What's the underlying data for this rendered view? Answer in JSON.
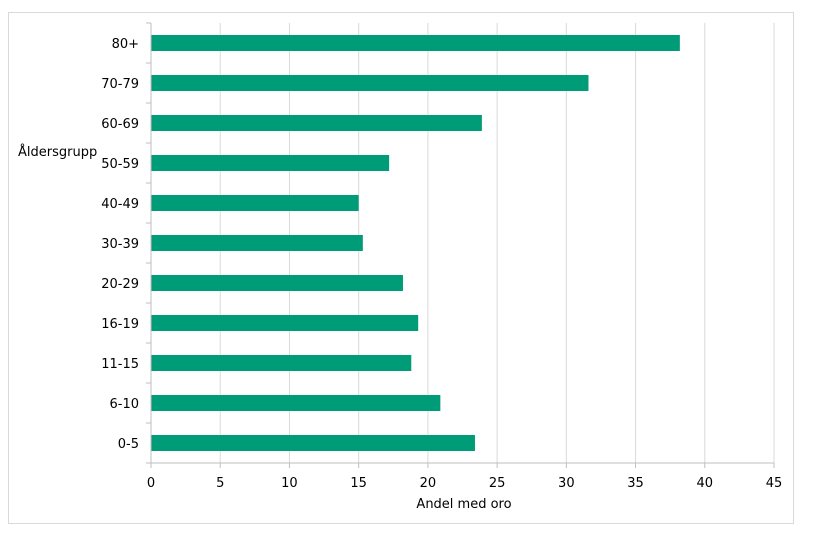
{
  "chart_data": {
    "type": "bar",
    "orientation": "horizontal",
    "categories": [
      "80+",
      "70-79",
      "60-69",
      "50-59",
      "40-49",
      "30-39",
      "20-29",
      "16-19",
      "11-15",
      "6-10",
      "0-5"
    ],
    "values": [
      38.2,
      31.6,
      23.9,
      17.2,
      15.0,
      15.3,
      18.2,
      19.3,
      18.8,
      20.9,
      23.4
    ],
    "xlabel": "Andel med oro",
    "ylabel": "Åldersgrupp",
    "xlim": [
      0,
      45
    ],
    "xticks": [
      "0",
      "5",
      "10",
      "15",
      "20",
      "25",
      "30",
      "35",
      "40",
      "45"
    ],
    "grid": "vertical",
    "bar_color": "#009b77",
    "grid_color": "#d9d9d9",
    "axis_color": "#bfbfbf"
  }
}
